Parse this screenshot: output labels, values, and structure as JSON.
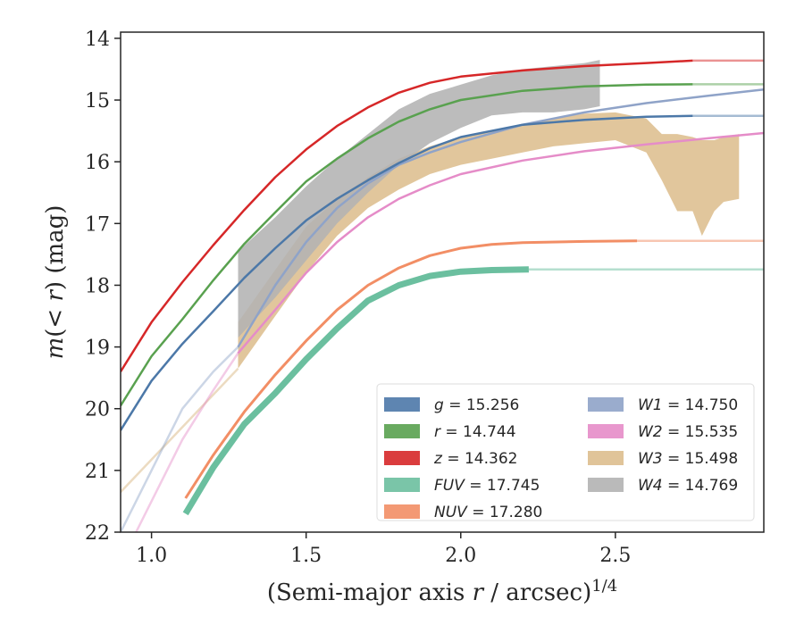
{
  "chart_data": {
    "type": "line",
    "xlabel": "(Semi-major axis r / arcsec)^1/4",
    "ylabel": "m(< r) (mag)",
    "xlim": [
      0.9,
      2.98
    ],
    "ylim": [
      22.0,
      13.9
    ],
    "y_inverted": true,
    "grid": false,
    "legend_position": "lower-right",
    "xticks": [
      "1.0",
      "1.5",
      "2.0",
      "2.5"
    ],
    "yticks": [
      "14",
      "15",
      "16",
      "17",
      "18",
      "19",
      "20",
      "21",
      "22"
    ],
    "series": [
      {
        "name": "g = 15.256",
        "mag": 15.256,
        "color": "#4c78a8",
        "style": "line",
        "width": 2.5,
        "x_end": 2.75,
        "faded_x_start": 0.9,
        "faded_x_end": 1.0,
        "x": [
          0.9,
          1.0,
          1.1,
          1.2,
          1.3,
          1.4,
          1.5,
          1.6,
          1.7,
          1.8,
          1.9,
          2.0,
          2.2,
          2.4,
          2.6,
          2.75,
          2.98
        ],
        "y": [
          20.35,
          19.55,
          18.95,
          18.42,
          17.88,
          17.4,
          16.95,
          16.6,
          16.3,
          16.02,
          15.78,
          15.6,
          15.4,
          15.32,
          15.27,
          15.256,
          15.256
        ]
      },
      {
        "name": "r = 14.744",
        "mag": 14.744,
        "color": "#59a14f",
        "style": "line",
        "width": 2.5,
        "x_end": 2.75,
        "x": [
          0.9,
          1.0,
          1.1,
          1.2,
          1.3,
          1.4,
          1.5,
          1.6,
          1.7,
          1.8,
          1.9,
          2.0,
          2.2,
          2.4,
          2.6,
          2.75,
          2.98
        ],
        "y": [
          19.95,
          19.15,
          18.55,
          17.92,
          17.33,
          16.82,
          16.32,
          15.95,
          15.62,
          15.35,
          15.15,
          15.0,
          14.85,
          14.78,
          14.75,
          14.744,
          14.744
        ]
      },
      {
        "name": "z = 14.362",
        "mag": 14.362,
        "color": "#d62728",
        "style": "line",
        "width": 2.5,
        "x_end": 2.75,
        "x": [
          0.9,
          1.0,
          1.1,
          1.2,
          1.3,
          1.4,
          1.5,
          1.6,
          1.7,
          1.8,
          1.9,
          2.0,
          2.2,
          2.4,
          2.6,
          2.75,
          2.98
        ],
        "y": [
          19.4,
          18.6,
          17.95,
          17.35,
          16.78,
          16.25,
          15.8,
          15.42,
          15.12,
          14.88,
          14.72,
          14.62,
          14.52,
          14.45,
          14.4,
          14.362,
          14.362
        ]
      },
      {
        "name": "FUV = 17.745",
        "mag": 17.745,
        "color": "#6bbf9f",
        "style": "thick",
        "width": 7,
        "x_start": 1.11,
        "x_end": 2.22,
        "x": [
          1.11,
          1.2,
          1.3,
          1.4,
          1.5,
          1.6,
          1.7,
          1.8,
          1.9,
          2.0,
          2.1,
          2.22,
          2.98
        ],
        "y": [
          21.7,
          20.95,
          20.25,
          19.75,
          19.2,
          18.7,
          18.25,
          18.0,
          17.85,
          17.78,
          17.755,
          17.745,
          17.745
        ]
      },
      {
        "name": "NUV = 17.280",
        "mag": 17.28,
        "color": "#f28e65",
        "style": "line",
        "width": 3,
        "x_start": 1.11,
        "x_end": 2.57,
        "x": [
          1.11,
          1.2,
          1.3,
          1.4,
          1.5,
          1.6,
          1.7,
          1.8,
          1.9,
          2.0,
          2.1,
          2.2,
          2.4,
          2.57,
          2.98
        ],
        "y": [
          21.45,
          20.75,
          20.05,
          19.45,
          18.9,
          18.4,
          18.0,
          17.72,
          17.52,
          17.4,
          17.34,
          17.31,
          17.29,
          17.28,
          17.28
        ]
      },
      {
        "name": "W1 = 14.750",
        "mag": 14.75,
        "color": "#8fa3c8",
        "style": "line",
        "width": 2.5,
        "x_start": 1.28,
        "faded_x_start": 0.9,
        "x_end": 2.98,
        "x": [
          0.9,
          1.0,
          1.1,
          1.2,
          1.28,
          1.4,
          1.5,
          1.6,
          1.7,
          1.8,
          1.9,
          2.0,
          2.2,
          2.4,
          2.6,
          2.8,
          2.98
        ],
        "y": [
          22.0,
          21.0,
          20.0,
          19.4,
          19.0,
          18.0,
          17.3,
          16.75,
          16.35,
          16.05,
          15.85,
          15.68,
          15.4,
          15.2,
          15.05,
          14.93,
          14.83
        ]
      },
      {
        "name": "W2 = 15.535",
        "mag": 15.535,
        "color": "#e58cc8",
        "style": "line",
        "width": 2.5,
        "x_start": 1.28,
        "faded_x_start": 0.95,
        "x_end": 2.98,
        "x": [
          0.95,
          1.1,
          1.2,
          1.28,
          1.4,
          1.5,
          1.6,
          1.7,
          1.8,
          1.9,
          2.0,
          2.2,
          2.4,
          2.6,
          2.8,
          2.98
        ],
        "y": [
          22.0,
          20.5,
          19.7,
          19.1,
          18.4,
          17.8,
          17.3,
          16.9,
          16.6,
          16.38,
          16.2,
          15.98,
          15.83,
          15.72,
          15.62,
          15.535
        ]
      },
      {
        "name": "W3 = 15.498",
        "mag": 15.498,
        "color": "#ddbe8e",
        "style": "band",
        "x_start": 1.28,
        "x_end": 2.9,
        "faded_x_start": 0.9,
        "x": [
          1.28,
          1.4,
          1.5,
          1.6,
          1.7,
          1.8,
          1.9,
          2.0,
          2.1,
          2.2,
          2.3,
          2.4,
          2.5,
          2.6,
          2.65,
          2.7,
          2.75,
          2.78,
          2.82,
          2.85,
          2.9
        ],
        "y_low": [
          19.35,
          18.5,
          17.8,
          17.2,
          16.75,
          16.45,
          16.2,
          16.05,
          15.95,
          15.85,
          15.75,
          15.7,
          15.65,
          15.85,
          16.3,
          16.8,
          16.8,
          17.2,
          16.8,
          16.65,
          16.6
        ],
        "y_high": [
          18.6,
          17.75,
          17.05,
          16.6,
          16.25,
          15.95,
          15.75,
          15.6,
          15.5,
          15.4,
          15.3,
          15.22,
          15.2,
          15.3,
          15.55,
          15.55,
          15.6,
          15.65,
          15.65,
          15.6,
          15.55
        ]
      },
      {
        "name": "W4 = 14.769",
        "mag": 14.769,
        "color": "#b3b3b3",
        "style": "band",
        "x_start": 1.28,
        "x_end": 2.45,
        "x": [
          1.28,
          1.4,
          1.5,
          1.6,
          1.7,
          1.8,
          1.9,
          2.0,
          2.1,
          2.2,
          2.3,
          2.4,
          2.45
        ],
        "y_low": [
          18.85,
          18.2,
          17.6,
          17.0,
          16.5,
          16.05,
          15.7,
          15.45,
          15.25,
          15.2,
          15.2,
          15.15,
          15.1
        ],
        "y_high": [
          17.45,
          16.9,
          16.4,
          15.95,
          15.55,
          15.15,
          14.9,
          14.75,
          14.6,
          14.5,
          14.45,
          14.4,
          14.35
        ]
      }
    ]
  }
}
